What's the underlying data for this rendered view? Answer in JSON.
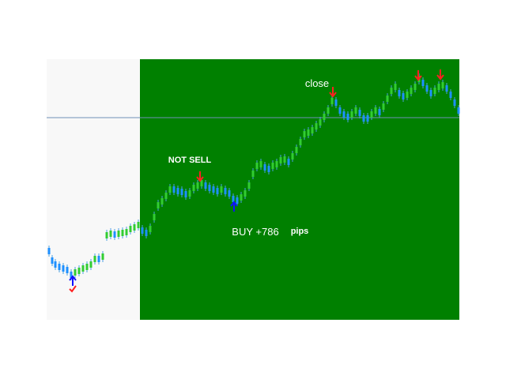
{
  "annotations": {
    "not_sell": "NOT SELL",
    "close": "close",
    "buy": "BUY +786",
    "pips": "pips"
  }
}
